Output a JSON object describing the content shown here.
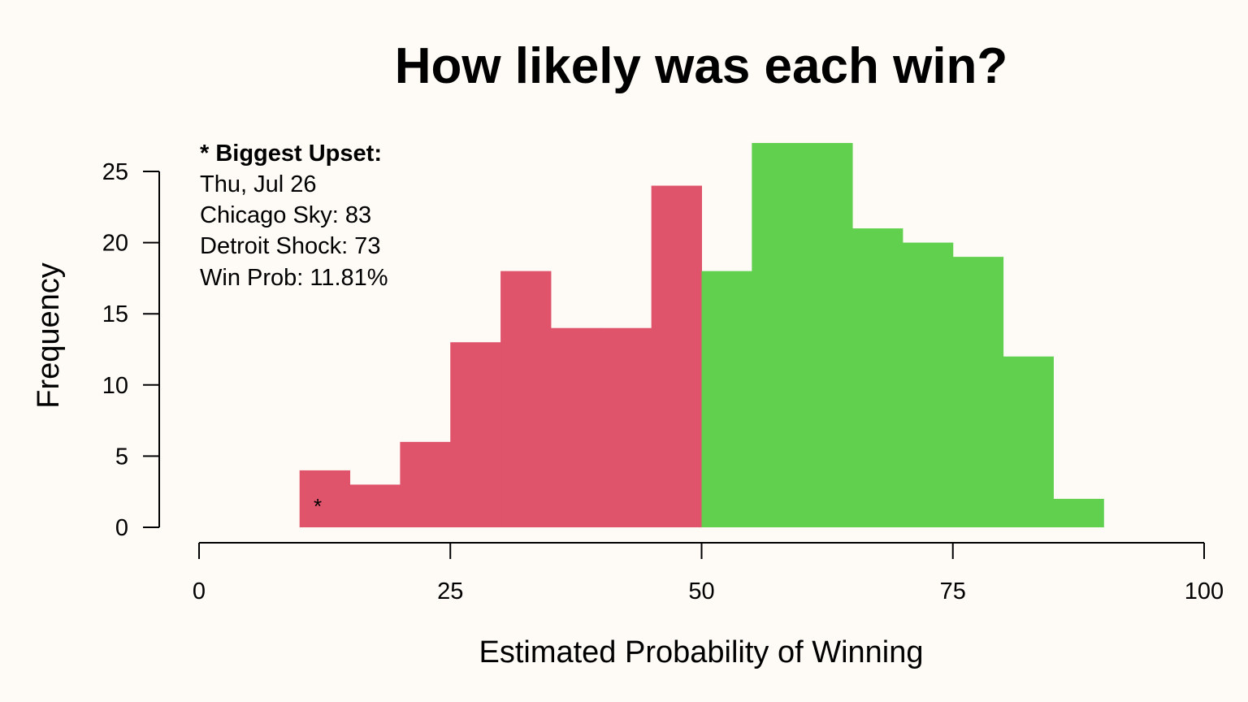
{
  "chart_data": {
    "type": "bar",
    "title": "How likely was each win?",
    "xlabel": "Estimated Probability of Winning",
    "ylabel": "Frequency",
    "xlim": [
      0,
      100
    ],
    "ylim": [
      0,
      25
    ],
    "x_ticks": [
      "0",
      "25",
      "50",
      "75",
      "100"
    ],
    "y_ticks": [
      "0",
      "5",
      "10",
      "15",
      "20",
      "25"
    ],
    "bins": [
      {
        "start": 10,
        "end": 15,
        "count": 4
      },
      {
        "start": 15,
        "end": 20,
        "count": 3
      },
      {
        "start": 20,
        "end": 25,
        "count": 6
      },
      {
        "start": 25,
        "end": 30,
        "count": 13
      },
      {
        "start": 30,
        "end": 35,
        "count": 18
      },
      {
        "start": 35,
        "end": 40,
        "count": 14
      },
      {
        "start": 40,
        "end": 45,
        "count": 14
      },
      {
        "start": 45,
        "end": 50,
        "count": 24
      },
      {
        "start": 50,
        "end": 55,
        "count": 18
      },
      {
        "start": 55,
        "end": 60,
        "count": 27
      },
      {
        "start": 60,
        "end": 65,
        "count": 27
      },
      {
        "start": 65,
        "end": 70,
        "count": 21
      },
      {
        "start": 70,
        "end": 75,
        "count": 20
      },
      {
        "start": 75,
        "end": 80,
        "count": 19
      },
      {
        "start": 80,
        "end": 85,
        "count": 12
      },
      {
        "start": 85,
        "end": 90,
        "count": 2
      }
    ],
    "colors": {
      "below_50": "#df536b",
      "above_50": "#61d04f"
    },
    "split_at": 50,
    "annotation": {
      "marker": "*",
      "marker_x": 11.81,
      "marker_y": 2,
      "heading": "* Biggest Upset:",
      "lines": [
        "Thu, Jul 26",
        "Chicago Sky: 83",
        "Detroit Shock: 73",
        "Win Prob: 11.81%"
      ]
    }
  }
}
